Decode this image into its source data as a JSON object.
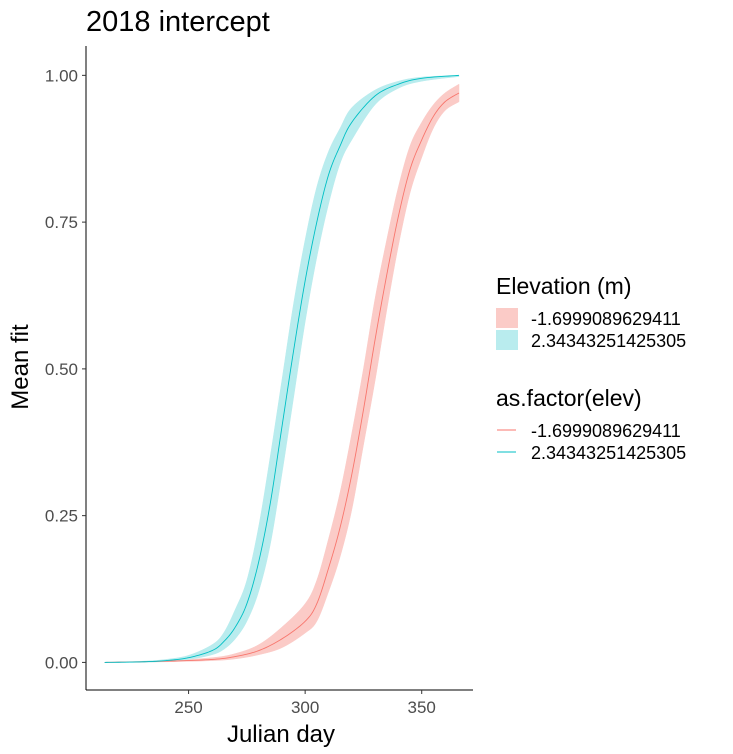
{
  "chart_data": {
    "type": "line",
    "title": "2018 intercept",
    "xlabel": "Julian day",
    "ylabel": "Mean fit",
    "xlim": [
      206,
      372
    ],
    "ylim": [
      -0.047,
      1.05
    ],
    "x_ticks": [
      250,
      300,
      350
    ],
    "y_ticks": [
      0.0,
      0.25,
      0.5,
      0.75,
      1.0
    ],
    "y_tick_labels": [
      "0.00",
      "0.25",
      "0.50",
      "0.75",
      "1.00"
    ],
    "grid": false,
    "legend_position": "right",
    "legends": [
      {
        "title": "Elevation (m)",
        "kind": "fill",
        "entries": [
          "-1.6999089629411",
          "2.34343251425305"
        ]
      },
      {
        "title": "as.factor(elev)",
        "kind": "line",
        "entries": [
          "-1.6999089629411",
          "2.34343251425305"
        ]
      }
    ],
    "series": [
      {
        "name": "-1.6999089629411",
        "color": "#F8766D",
        "band_color": "#FBCBC7",
        "x": [
          214,
          240,
          260,
          270,
          280,
          290,
          300,
          305,
          310,
          315,
          320,
          325,
          330,
          335,
          340,
          345,
          350,
          355,
          360,
          366
        ],
        "y": [
          0.0,
          0.002,
          0.005,
          0.01,
          0.02,
          0.04,
          0.07,
          0.1,
          0.16,
          0.23,
          0.32,
          0.43,
          0.55,
          0.66,
          0.76,
          0.84,
          0.89,
          0.93,
          0.955,
          0.97
        ],
        "lower": [
          0.0,
          0.001,
          0.003,
          0.006,
          0.013,
          0.025,
          0.05,
          0.07,
          0.12,
          0.18,
          0.26,
          0.37,
          0.48,
          0.6,
          0.71,
          0.8,
          0.86,
          0.91,
          0.94,
          0.955
        ],
        "upper": [
          0.0,
          0.003,
          0.008,
          0.015,
          0.03,
          0.06,
          0.1,
          0.14,
          0.21,
          0.29,
          0.39,
          0.5,
          0.62,
          0.72,
          0.81,
          0.88,
          0.92,
          0.95,
          0.97,
          0.985
        ]
      },
      {
        "name": "2.34343251425305",
        "color": "#00BFC4",
        "band_color": "#B9ECEE",
        "x": [
          214,
          230,
          240,
          250,
          260,
          265,
          270,
          275,
          280,
          285,
          290,
          295,
          300,
          305,
          310,
          315,
          320,
          330,
          340,
          350,
          366
        ],
        "y": [
          0.0,
          0.001,
          0.003,
          0.008,
          0.02,
          0.035,
          0.06,
          0.1,
          0.17,
          0.27,
          0.4,
          0.53,
          0.65,
          0.75,
          0.83,
          0.88,
          0.92,
          0.965,
          0.985,
          0.995,
          1.0
        ],
        "lower": [
          0.0,
          0.0,
          0.002,
          0.005,
          0.013,
          0.022,
          0.04,
          0.07,
          0.12,
          0.2,
          0.32,
          0.45,
          0.58,
          0.69,
          0.78,
          0.85,
          0.89,
          0.95,
          0.978,
          0.99,
          0.998
        ],
        "upper": [
          0.0,
          0.002,
          0.005,
          0.012,
          0.03,
          0.05,
          0.09,
          0.14,
          0.23,
          0.35,
          0.48,
          0.61,
          0.72,
          0.81,
          0.87,
          0.91,
          0.945,
          0.975,
          0.99,
          0.997,
          1.0
        ]
      }
    ]
  }
}
